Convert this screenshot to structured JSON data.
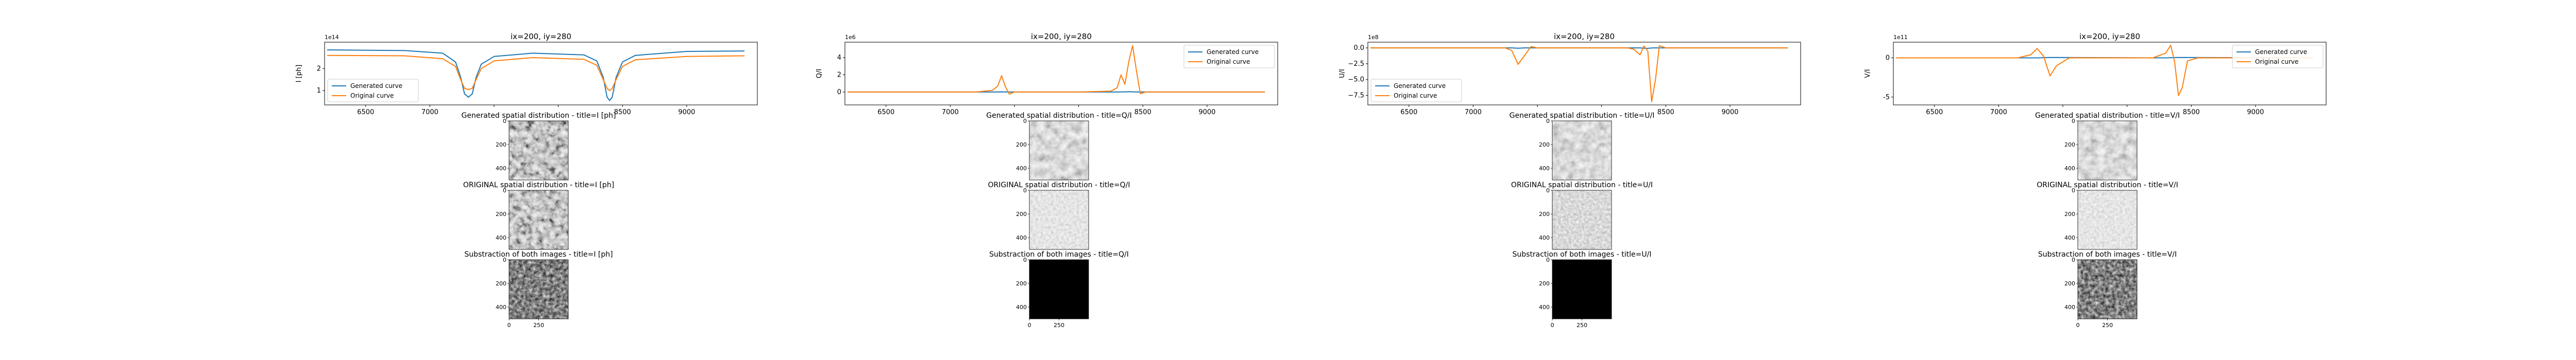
{
  "colors": {
    "generated": "#1f77b4",
    "original": "#ff7f0e",
    "axis": "#000000",
    "background": "#ffffff"
  },
  "panels": [
    {
      "id": "I",
      "line_title": "ix=200, iy=280",
      "ylabel": "I [ph]",
      "offset_label": "1e14",
      "gen_title": "Generated spatial distribution - title=I [ph]",
      "orig_title": "ORIGINAL spatial distribution - title=I [ph]",
      "diff_title": "Substraction of both images - title=I [ph]",
      "legend_loc": "lower-left",
      "legend": [
        "Generated curve",
        "Original curve"
      ],
      "gen_tone": "textured-dark",
      "orig_tone": "textured-dark",
      "diff_tone": "sparse-dark"
    },
    {
      "id": "Q",
      "line_title": "ix=200, iy=280",
      "ylabel": "Q/I",
      "offset_label": "1e6",
      "gen_title": "Generated spatial distribution - title=Q/I",
      "orig_title": "ORIGINAL spatial distribution - title=Q/I",
      "diff_title": "Substraction of both images - title=Q/I",
      "legend_loc": "upper-right",
      "legend": [
        "Generated curve",
        "Original curve"
      ],
      "gen_tone": "textured-mid",
      "orig_tone": "flat-light",
      "diff_tone": "black"
    },
    {
      "id": "U",
      "line_title": "ix=200, iy=280",
      "ylabel": "U/I",
      "offset_label": "1e8",
      "gen_title": "Generated spatial distribution - title=U/I",
      "orig_title": "ORIGINAL spatial distribution - title=U/I",
      "diff_title": "Substraction of both images - title=U/I",
      "legend_loc": "lower-left",
      "legend": [
        "Generated curve",
        "Original curve"
      ],
      "gen_tone": "textured-mid",
      "orig_tone": "flat-mid",
      "diff_tone": "black"
    },
    {
      "id": "V",
      "line_title": "ix=200, iy=280",
      "ylabel": "V/I",
      "offset_label": "1e11",
      "gen_title": "Generated spatial distribution - title=V/I",
      "orig_title": "ORIGINAL spatial distribution - title=V/I",
      "diff_title": "Substraction of both images - title=V/I",
      "legend_loc": "upper-right",
      "legend": [
        "Generated curve",
        "Original curve"
      ],
      "gen_tone": "textured-mid",
      "orig_tone": "flat-light",
      "diff_tone": "sparse-dark"
    }
  ],
  "chart_data": [
    {
      "type": "line",
      "title": "ix=200, iy=280",
      "ylabel": "I [ph]",
      "y_scale_label": "1e14",
      "xlim": [
        6180,
        9550
      ],
      "ylim": [
        0.35,
        3.2
      ],
      "xticks": [
        6500,
        7000,
        7500,
        8000,
        8500,
        9000
      ],
      "xtick_labels": [
        "6500",
        "7000",
        "",
        "",
        "8500",
        "9000"
      ],
      "yticks": [
        1,
        2
      ],
      "legend": "lower-left",
      "series": [
        {
          "name": "Generated curve",
          "x": [
            6200,
            6800,
            7100,
            7200,
            7240,
            7270,
            7300,
            7330,
            7360,
            7400,
            7500,
            7800,
            8200,
            8300,
            8350,
            8380,
            8400,
            8420,
            8450,
            8500,
            8600,
            9000,
            9450
          ],
          "y": [
            2.85,
            2.82,
            2.7,
            2.3,
            1.6,
            0.85,
            0.7,
            0.85,
            1.6,
            2.2,
            2.55,
            2.7,
            2.62,
            2.35,
            1.6,
            0.7,
            0.55,
            0.7,
            1.6,
            2.3,
            2.6,
            2.78,
            2.8
          ]
        },
        {
          "name": "Original curve",
          "x": [
            6200,
            6800,
            7100,
            7200,
            7240,
            7270,
            7300,
            7330,
            7360,
            7400,
            7500,
            7800,
            8200,
            8300,
            8350,
            8380,
            8400,
            8420,
            8450,
            8500,
            8600,
            9000,
            9450
          ],
          "y": [
            2.6,
            2.58,
            2.45,
            2.1,
            1.5,
            1.1,
            1.05,
            1.1,
            1.5,
            2.0,
            2.35,
            2.5,
            2.42,
            2.15,
            1.5,
            1.1,
            1.0,
            1.1,
            1.5,
            2.1,
            2.4,
            2.55,
            2.58
          ]
        }
      ]
    },
    {
      "type": "line",
      "title": "ix=200, iy=280",
      "ylabel": "Q/I",
      "y_scale_label": "1e6",
      "xlim": [
        6180,
        9550
      ],
      "ylim": [
        -1.5,
        5.8
      ],
      "xticks": [
        6500,
        7000,
        7500,
        8000,
        8500,
        9000
      ],
      "xtick_labels": [
        "6500",
        "7000",
        "",
        "",
        "8500",
        "9000"
      ],
      "yticks": [
        0,
        2,
        4
      ],
      "legend": "upper-right",
      "series": [
        {
          "name": "Generated curve",
          "x": [
            6200,
            7200,
            7350,
            7400,
            7450,
            8000,
            8300,
            8400,
            8450,
            9450
          ],
          "y": [
            0,
            0,
            0,
            0.02,
            0,
            0,
            0,
            0.03,
            0,
            0
          ]
        },
        {
          "name": "Original curve",
          "x": [
            6200,
            7200,
            7330,
            7370,
            7400,
            7430,
            7460,
            7500,
            7600,
            8000,
            8250,
            8300,
            8330,
            8360,
            8390,
            8420,
            8450,
            8480,
            8520,
            8600,
            9450
          ],
          "y": [
            0,
            0,
            0.2,
            0.7,
            1.9,
            0.6,
            -0.25,
            0,
            0,
            0,
            0.1,
            0.5,
            2.0,
            0.9,
            3.5,
            5.4,
            2.5,
            -0.2,
            0,
            0,
            0
          ]
        }
      ]
    },
    {
      "type": "line",
      "title": "ix=200, iy=280",
      "ylabel": "U/I",
      "y_scale_label": "1e8",
      "xlim": [
        6180,
        9550
      ],
      "ylim": [
        -9.0,
        0.9
      ],
      "xticks": [
        6500,
        7000,
        7500,
        8000,
        8500,
        9000
      ],
      "xtick_labels": [
        "6500",
        "7000",
        "",
        "",
        "8500",
        "9000"
      ],
      "yticks": [
        0.0,
        -2.5,
        -5.0,
        -7.5
      ],
      "ytick_labels": [
        "0.0",
        "−2.5",
        "−5.0",
        "−7.5"
      ],
      "legend": "lower-left",
      "series": [
        {
          "name": "Generated curve",
          "x": [
            6200,
            7200,
            7300,
            7350,
            7400,
            8000,
            8300,
            8350,
            8400,
            9450
          ],
          "y": [
            0,
            0,
            0,
            -0.05,
            0,
            0,
            0,
            -0.08,
            0,
            0
          ]
        },
        {
          "name": "Original curve",
          "x": [
            6200,
            7150,
            7250,
            7300,
            7350,
            7400,
            7450,
            7500,
            7600,
            8000,
            8200,
            8250,
            8300,
            8330,
            8360,
            8390,
            8420,
            8450,
            8500,
            9450
          ],
          "y": [
            0,
            0,
            0,
            -0.4,
            -2.6,
            -1.2,
            0.2,
            0,
            0,
            0,
            0,
            -0.2,
            -1.1,
            0.3,
            -0.5,
            -8.5,
            -5.0,
            0.35,
            0,
            0
          ]
        }
      ]
    },
    {
      "type": "line",
      "title": "ix=200, iy=280",
      "ylabel": "V/I",
      "y_scale_label": "1e11",
      "xlim": [
        6180,
        9550
      ],
      "ylim": [
        -6.0,
        2.0
      ],
      "xticks": [
        6500,
        7000,
        7500,
        8000,
        8500,
        9000
      ],
      "xtick_labels": [
        "6500",
        "7000",
        "",
        "",
        "8500",
        "9000"
      ],
      "yticks": [
        0,
        -5
      ],
      "legend": "upper-right",
      "series": [
        {
          "name": "Generated curve",
          "x": [
            6200,
            7300,
            7400,
            8300,
            8400,
            9450
          ],
          "y": [
            0,
            0,
            0.05,
            0,
            0.05,
            0
          ]
        },
        {
          "name": "Original curve",
          "x": [
            6200,
            7150,
            7250,
            7300,
            7350,
            7400,
            7450,
            7550,
            8000,
            8200,
            8300,
            8340,
            8370,
            8400,
            8430,
            8470,
            8550,
            9450
          ],
          "y": [
            0,
            0,
            0.4,
            1.2,
            0.2,
            -2.3,
            -1.0,
            0,
            0,
            0,
            0.6,
            1.6,
            -0.5,
            -4.8,
            -3.8,
            -0.4,
            0,
            0
          ]
        }
      ]
    }
  ]
}
